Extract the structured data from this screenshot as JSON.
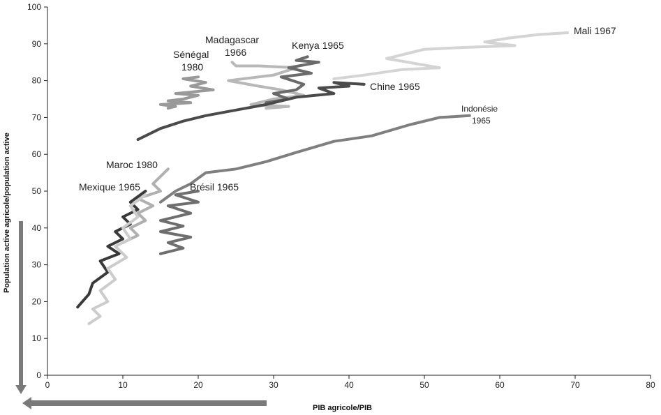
{
  "chart_data": {
    "type": "line",
    "xlabel": "PIB agricole/PIB",
    "ylabel": "Population active agricole/population active",
    "xlim": [
      0,
      80
    ],
    "ylim": [
      0,
      100
    ],
    "x_ticks": [
      "0",
      "10",
      "20",
      "30",
      "40",
      "50",
      "60",
      "70",
      "80"
    ],
    "y_ticks": [
      "0",
      "10",
      "20",
      "30",
      "40",
      "50",
      "60",
      "70",
      "80",
      "90",
      "100"
    ],
    "grid": false,
    "series": [
      {
        "name": "Mali 1967",
        "color": "#d4d4d4",
        "x": [
          69,
          65,
          61,
          58,
          62,
          55,
          50,
          48,
          45,
          52,
          47,
          42,
          38
        ],
        "y": [
          93,
          92.5,
          91.5,
          90.5,
          89.5,
          89,
          88.5,
          87.5,
          86,
          83.5,
          83,
          81.5,
          80.5
        ]
      },
      {
        "name": "Madagascar 1966",
        "color": "#b8b8b8",
        "x": [
          24.5,
          25,
          28,
          33,
          30,
          24,
          28,
          31,
          34,
          30,
          27,
          32,
          29
        ],
        "y": [
          85,
          84,
          84,
          83.5,
          81.5,
          80,
          78.5,
          77.5,
          76,
          75,
          73.5,
          73,
          72.5
        ]
      },
      {
        "name": "Kenya 1965",
        "color": "#6a6a6a",
        "x": [
          34.5,
          33,
          36,
          32,
          35,
          31,
          34,
          33,
          30,
          32,
          29
        ],
        "y": [
          86.5,
          85.5,
          85,
          83.5,
          82,
          81,
          79,
          77.5,
          76.5,
          75,
          74
        ]
      },
      {
        "name": "Sénégal 1980",
        "color": "#999999",
        "x": [
          20,
          18,
          21,
          19,
          22,
          17,
          20,
          18,
          16,
          19,
          15,
          17,
          16
        ],
        "y": [
          81,
          80.5,
          79.5,
          78.5,
          77.5,
          76.5,
          76,
          75,
          74.5,
          74,
          73.5,
          73,
          72.5
        ]
      },
      {
        "name": "Chine 1965",
        "color": "#4a4a4a",
        "x": [
          42,
          38,
          40,
          36,
          38,
          33,
          29,
          25,
          21,
          18,
          15,
          12
        ],
        "y": [
          79,
          79.5,
          78.5,
          78,
          76.5,
          75.5,
          73.5,
          72,
          70.5,
          69,
          67,
          64
        ]
      },
      {
        "name": "Indonésie 1965",
        "color": "#7f7f7f",
        "x": [
          56,
          52,
          48,
          43,
          38,
          33,
          29,
          25,
          21,
          19,
          17,
          15
        ],
        "y": [
          70.5,
          70,
          68,
          65,
          63.5,
          60.5,
          58,
          56,
          55,
          52,
          50,
          47
        ]
      },
      {
        "name": "Maroc 1980",
        "color": "#b0b0b0",
        "x": [
          16,
          15,
          14,
          15,
          12,
          14,
          12,
          13,
          11,
          12,
          10
        ],
        "y": [
          56,
          54,
          52,
          50,
          48,
          46,
          44,
          42,
          40,
          38,
          36
        ]
      },
      {
        "name": "Brésil 1965",
        "color": "#6e6e6e",
        "x": [
          20,
          17,
          20,
          16,
          19,
          15,
          18,
          15,
          19,
          16,
          18,
          15
        ],
        "y": [
          50,
          49,
          47,
          46,
          44,
          42,
          40.5,
          39,
          37.5,
          36,
          34.5,
          33
        ]
      },
      {
        "name": "Mexique 1965",
        "color": "#3a3a3a",
        "x": [
          13,
          11,
          12,
          10,
          11,
          9,
          10,
          8,
          9.5,
          7,
          8,
          6,
          5.5,
          4
        ],
        "y": [
          50,
          47,
          45,
          43,
          41,
          39,
          37,
          35,
          33,
          31,
          28,
          25,
          22,
          18.5
        ]
      },
      {
        "name": "",
        "color": "#cccccc",
        "x": [
          13,
          11,
          12,
          10,
          11,
          9,
          10.5,
          8,
          9,
          7,
          8,
          6,
          7,
          5.5
        ],
        "y": [
          49,
          46,
          43,
          40,
          37,
          35,
          32,
          29,
          26,
          23,
          20,
          18,
          16,
          14
        ]
      }
    ],
    "annotations": [
      {
        "text": "Mali 1967"
      },
      {
        "text": "Kenya 1965"
      },
      {
        "text": "Madagascar"
      },
      {
        "text": "1966"
      },
      {
        "text": "Sénégal"
      },
      {
        "text": "1980"
      },
      {
        "text": "Chine 1965"
      },
      {
        "text": "Indonésie"
      },
      {
        "text": "1965"
      },
      {
        "text": "Maroc 1980"
      },
      {
        "text": "Mexique 1965"
      },
      {
        "text": "Brésil 1965"
      }
    ]
  }
}
